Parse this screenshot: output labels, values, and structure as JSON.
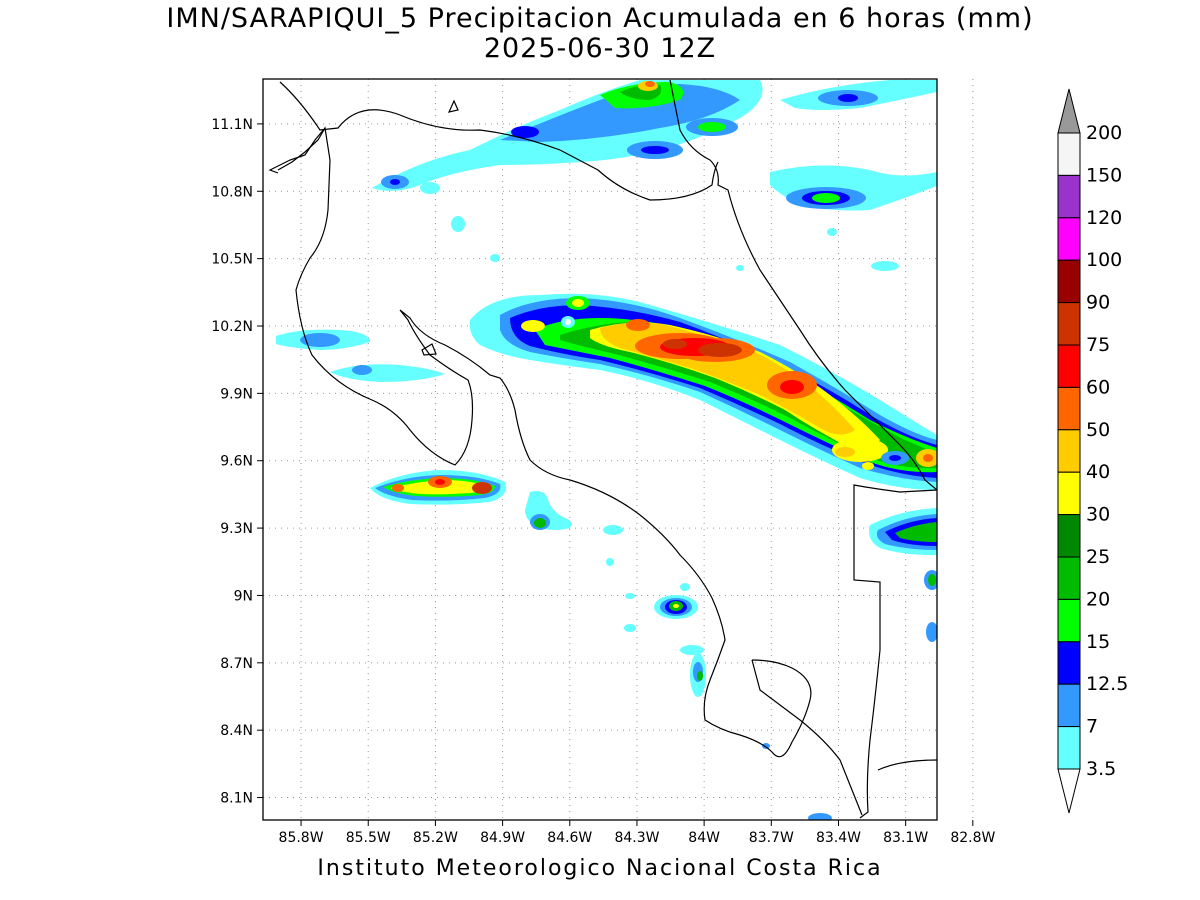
{
  "title_line1": "IMN/SARAPIQUI_5 Precipitacion Acumulada en 6 horas (mm)",
  "title_line2": "2025-06-30 12Z",
  "footer": "Instituto Meteorologico Nacional Costa Rica",
  "map": {
    "lon_range": [
      -86.0,
      -83.0
    ],
    "lat_range": [
      8.0,
      11.3
    ],
    "lat_ticks": [
      "11.1N",
      "10.8N",
      "10.5N",
      "10.2N",
      "9.9N",
      "9.6N",
      "9.3N",
      "9N",
      "8.7N",
      "8.4N",
      "8.1N"
    ],
    "lon_ticks": [
      "85.8W",
      "85.5W",
      "85.2W",
      "84.9W",
      "84.6W",
      "84.3W",
      "84W",
      "83.7W",
      "83.4W",
      "83.1W",
      "82.8W"
    ],
    "grid": "dotted"
  },
  "colorbar": {
    "labels": [
      "200",
      "150",
      "120",
      "100",
      "90",
      "75",
      "60",
      "50",
      "40",
      "30",
      "25",
      "20",
      "15",
      "12.5",
      "7",
      "3.5"
    ],
    "colors": [
      "#f5f5f5",
      "#9933cc",
      "#ff00ff",
      "#990000",
      "#cc3300",
      "#ff0000",
      "#ff6600",
      "#ffcc00",
      "#ffff00",
      "#008800",
      "#00bb00",
      "#00ff00",
      "#0000ff",
      "#3399ff",
      "#66ffff"
    ],
    "overflow_color": "#999999"
  }
}
